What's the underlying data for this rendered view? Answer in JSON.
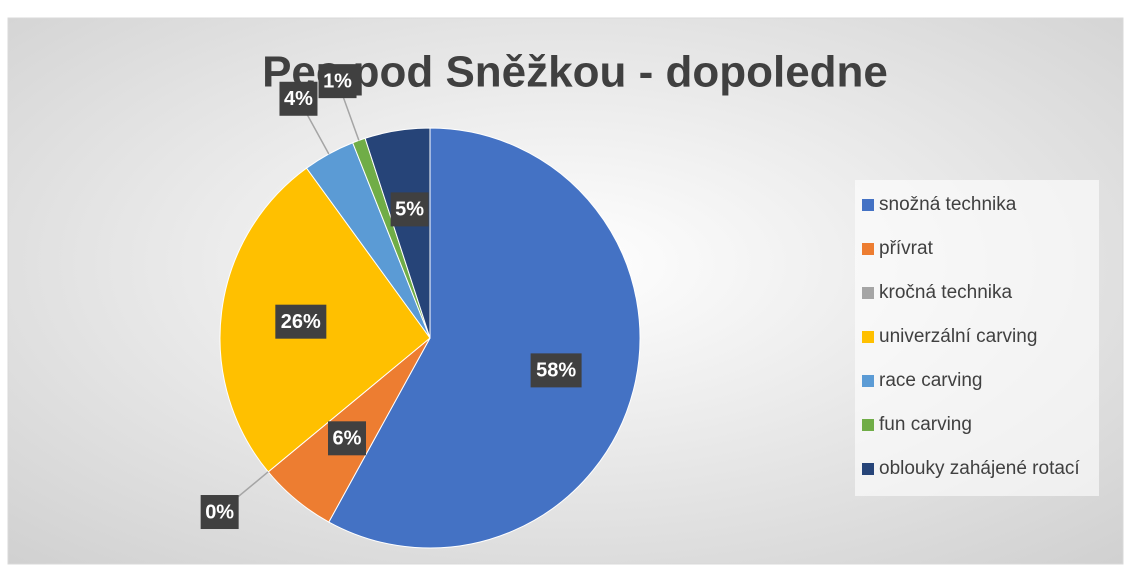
{
  "chart_data": {
    "type": "pie",
    "title": "Pec pod Sněžkou - dopoledne",
    "categories": [
      "snožná technika",
      "přívrat",
      "kročná technika",
      "univerzální carving",
      "race carving",
      "fun carving",
      "oblouky zahájené rotací"
    ],
    "values": [
      58,
      6,
      0,
      26,
      4,
      1,
      5
    ],
    "value_labels": [
      "58%",
      "6%",
      "0%",
      "26%",
      "4%",
      "1%",
      "5%"
    ],
    "colors": [
      "#4472c4",
      "#ed7d31",
      "#a5a5a5",
      "#ffc000",
      "#5b9bd5",
      "#70ad47",
      "#264478"
    ],
    "legend": "right"
  }
}
